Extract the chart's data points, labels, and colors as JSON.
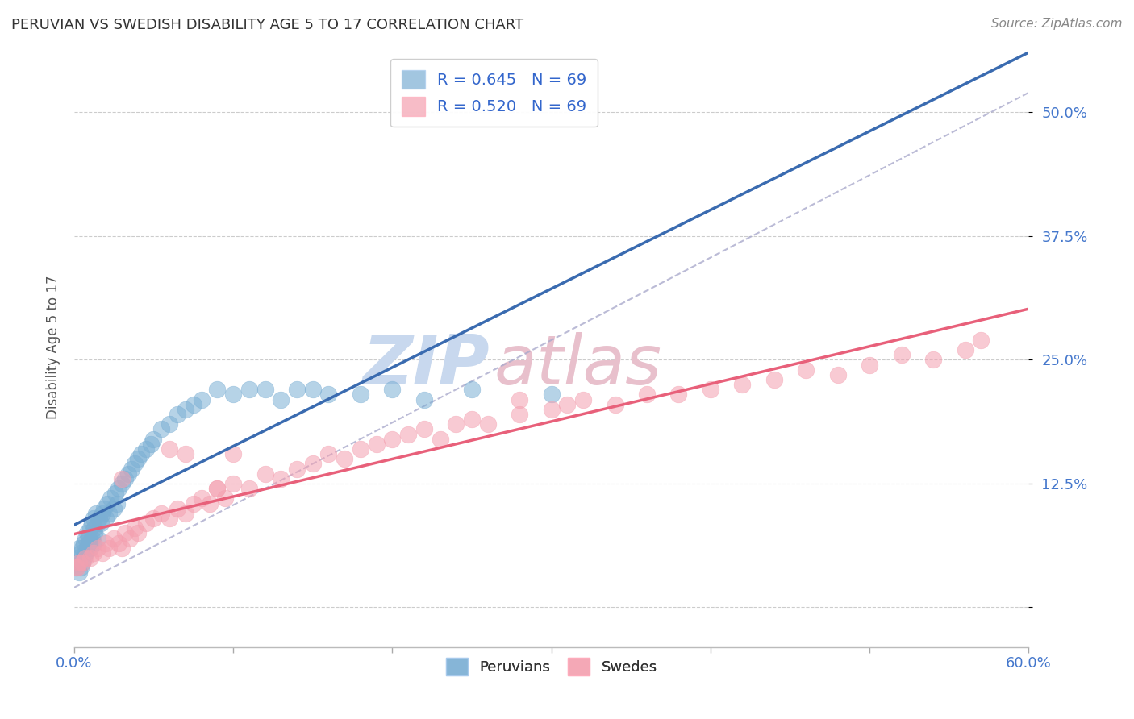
{
  "title": "PERUVIAN VS SWEDISH DISABILITY AGE 5 TO 17 CORRELATION CHART",
  "source": "Source: ZipAtlas.com",
  "ylabel": "Disability Age 5 to 17",
  "yticks": [
    0.0,
    0.125,
    0.25,
    0.375,
    0.5
  ],
  "ytick_labels": [
    "",
    "12.5%",
    "25.0%",
    "37.5%",
    "50.0%"
  ],
  "xmin": 0.0,
  "xmax": 0.6,
  "ymin": -0.04,
  "ymax": 0.565,
  "peruvian_R": 0.645,
  "peruvian_N": 69,
  "swedish_R": 0.52,
  "swedish_N": 69,
  "blue_color": "#7BAFD4",
  "pink_color": "#F4A0B0",
  "blue_line_color": "#3A6BB0",
  "pink_line_color": "#E8607A",
  "ref_line_color": "#AAAACC",
  "axis_label_color": "#4477CC",
  "watermark_blue": "#C8D8EE",
  "watermark_pink": "#E8C0CC",
  "legend_R_color": "#3366CC",
  "background_color": "#FFFFFF",
  "grid_color": "#CCCCCC",
  "peruvian_x": [
    0.001,
    0.002,
    0.002,
    0.003,
    0.003,
    0.004,
    0.004,
    0.005,
    0.005,
    0.006,
    0.006,
    0.007,
    0.007,
    0.008,
    0.008,
    0.009,
    0.009,
    0.01,
    0.01,
    0.011,
    0.011,
    0.012,
    0.012,
    0.013,
    0.013,
    0.014,
    0.015,
    0.015,
    0.016,
    0.017,
    0.018,
    0.019,
    0.02,
    0.021,
    0.022,
    0.023,
    0.025,
    0.026,
    0.027,
    0.028,
    0.03,
    0.032,
    0.034,
    0.036,
    0.038,
    0.04,
    0.042,
    0.045,
    0.048,
    0.05,
    0.055,
    0.06,
    0.065,
    0.07,
    0.075,
    0.08,
    0.09,
    0.1,
    0.11,
    0.12,
    0.13,
    0.14,
    0.15,
    0.16,
    0.18,
    0.2,
    0.22,
    0.25,
    0.3
  ],
  "peruvian_y": [
    0.04,
    0.045,
    0.05,
    0.035,
    0.06,
    0.04,
    0.055,
    0.045,
    0.06,
    0.05,
    0.065,
    0.055,
    0.07,
    0.06,
    0.075,
    0.065,
    0.07,
    0.06,
    0.08,
    0.07,
    0.085,
    0.065,
    0.09,
    0.075,
    0.08,
    0.095,
    0.07,
    0.085,
    0.09,
    0.085,
    0.095,
    0.1,
    0.09,
    0.105,
    0.095,
    0.11,
    0.1,
    0.115,
    0.105,
    0.12,
    0.125,
    0.13,
    0.135,
    0.14,
    0.145,
    0.15,
    0.155,
    0.16,
    0.165,
    0.17,
    0.18,
    0.185,
    0.195,
    0.2,
    0.205,
    0.21,
    0.22,
    0.215,
    0.22,
    0.22,
    0.21,
    0.22,
    0.22,
    0.215,
    0.215,
    0.22,
    0.21,
    0.22,
    0.215
  ],
  "swedish_x": [
    0.001,
    0.002,
    0.003,
    0.005,
    0.007,
    0.01,
    0.012,
    0.015,
    0.018,
    0.02,
    0.022,
    0.025,
    0.028,
    0.03,
    0.032,
    0.035,
    0.038,
    0.04,
    0.045,
    0.05,
    0.055,
    0.06,
    0.065,
    0.07,
    0.075,
    0.08,
    0.085,
    0.09,
    0.095,
    0.1,
    0.11,
    0.12,
    0.13,
    0.14,
    0.15,
    0.16,
    0.17,
    0.18,
    0.19,
    0.2,
    0.21,
    0.22,
    0.23,
    0.24,
    0.25,
    0.26,
    0.28,
    0.3,
    0.32,
    0.34,
    0.36,
    0.38,
    0.4,
    0.42,
    0.44,
    0.46,
    0.48,
    0.5,
    0.52,
    0.54,
    0.56,
    0.03,
    0.28,
    0.31,
    0.07,
    0.06,
    0.1,
    0.57,
    0.09
  ],
  "swedish_y": [
    0.04,
    0.04,
    0.045,
    0.045,
    0.05,
    0.05,
    0.055,
    0.06,
    0.055,
    0.065,
    0.06,
    0.07,
    0.065,
    0.06,
    0.075,
    0.07,
    0.08,
    0.075,
    0.085,
    0.09,
    0.095,
    0.09,
    0.1,
    0.095,
    0.105,
    0.11,
    0.105,
    0.12,
    0.11,
    0.125,
    0.12,
    0.135,
    0.13,
    0.14,
    0.145,
    0.155,
    0.15,
    0.16,
    0.165,
    0.17,
    0.175,
    0.18,
    0.17,
    0.185,
    0.19,
    0.185,
    0.195,
    0.2,
    0.21,
    0.205,
    0.215,
    0.215,
    0.22,
    0.225,
    0.23,
    0.24,
    0.235,
    0.245,
    0.255,
    0.25,
    0.26,
    0.13,
    0.21,
    0.205,
    0.155,
    0.16,
    0.155,
    0.27,
    0.12
  ],
  "ref_line_x0": 0.0,
  "ref_line_y0": 0.02,
  "ref_line_x1": 0.6,
  "ref_line_y1": 0.52
}
